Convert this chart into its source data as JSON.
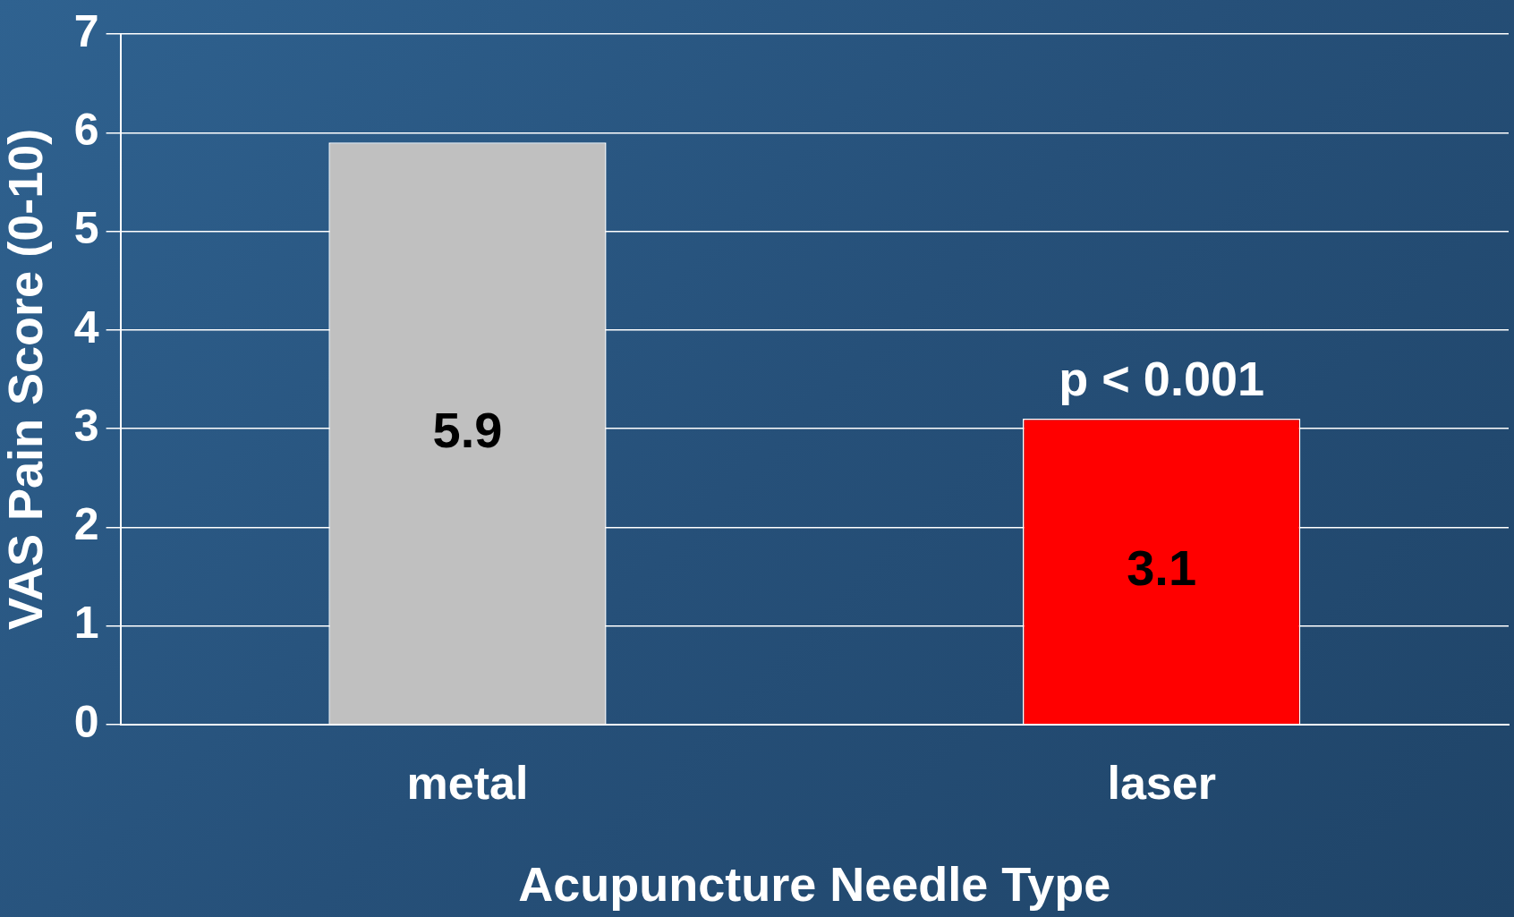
{
  "chart_data": {
    "type": "bar",
    "xlabel": "Acupuncture Needle Type",
    "ylabel": "VAS Pain Score (0-10)",
    "categories": [
      "metal",
      "laser"
    ],
    "values": [
      5.9,
      3.1
    ],
    "colors": [
      "#c0c0c0",
      "#ff0000"
    ],
    "ylim": [
      0,
      7
    ],
    "yticks": [
      0,
      1,
      2,
      3,
      4,
      5,
      6,
      7
    ],
    "grid": "y",
    "data_labels": true,
    "annotations": [
      {
        "text": "p < 0.001",
        "x": "laser",
        "y": 3.1
      }
    ]
  }
}
